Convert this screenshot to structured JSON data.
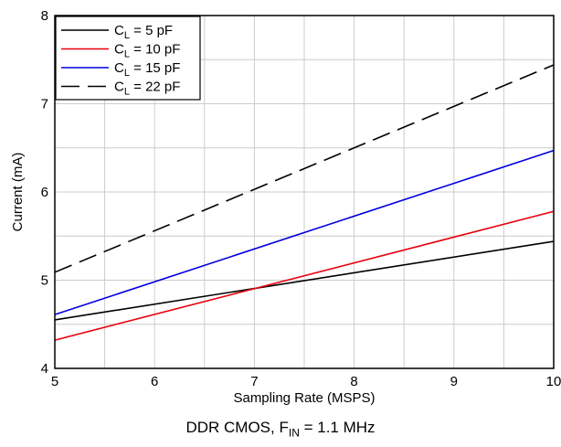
{
  "chart_data": {
    "type": "line",
    "xlabel": "Sampling Rate (MSPS)",
    "ylabel": "Current (mA)",
    "xlim": [
      5,
      10
    ],
    "ylim": [
      4,
      8
    ],
    "xticks": [
      5,
      6,
      7,
      8,
      9,
      10
    ],
    "yticks": [
      4,
      5,
      6,
      7,
      8
    ],
    "grid": true,
    "legend_position": "top-left",
    "series": [
      {
        "name_main": "C",
        "name_sub": "L",
        "name_rest": " = 5 pF",
        "color": "#000000",
        "dash": "solid",
        "x": [
          5,
          10
        ],
        "y": [
          4.55,
          5.44
        ]
      },
      {
        "name_main": "C",
        "name_sub": "L",
        "name_rest": " = 10 pF",
        "color": "#e8000b",
        "dash": "solid",
        "x": [
          5,
          10
        ],
        "y": [
          4.32,
          5.78
        ]
      },
      {
        "name_main": "C",
        "name_sub": "L",
        "name_rest": " = 15 pF",
        "color": "#0000e0",
        "dash": "solid",
        "x": [
          5,
          10
        ],
        "y": [
          4.61,
          6.47
        ]
      },
      {
        "name_main": "C",
        "name_sub": "L",
        "name_rest": " = 22 pF",
        "color": "#000000",
        "dash": "dashed",
        "x": [
          5,
          10
        ],
        "y": [
          5.09,
          7.44
        ]
      }
    ]
  },
  "caption": {
    "main": "DDR CMOS, F",
    "sub": "IN",
    "rest": " = 1.1 MHz"
  }
}
